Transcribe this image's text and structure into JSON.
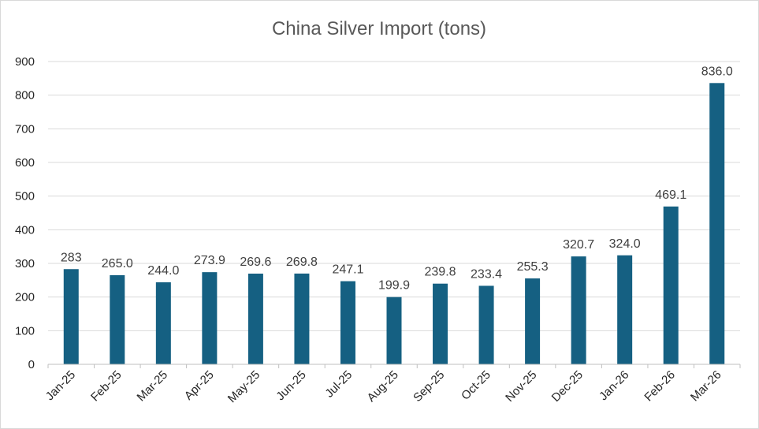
{
  "chart_data": {
    "type": "bar",
    "title": "China Silver Import (tons)",
    "xlabel": "",
    "ylabel": "",
    "categories": [
      "Jan-25",
      "Feb-25",
      "Mar-25",
      "Apr-25",
      "May-25",
      "Jun-25",
      "Jul-25",
      "Aug-25",
      "Sep-25",
      "Oct-25",
      "Nov-25",
      "Dec-25",
      "Jan-26",
      "Feb-26",
      "Mar-26"
    ],
    "values": [
      283,
      265.0,
      244.0,
      273.9,
      269.6,
      269.8,
      247.1,
      199.9,
      239.8,
      233.4,
      255.3,
      320.7,
      324.0,
      469.1,
      836.0
    ],
    "data_labels": [
      "283",
      "265.0",
      "244.0",
      "273.9",
      "269.6",
      "269.8",
      "247.1",
      "199.9",
      "239.8",
      "233.4",
      "255.3",
      "320.7",
      "324.0",
      "469.1",
      "836.0"
    ],
    "ylim": [
      0,
      900
    ],
    "yticks": [
      "0",
      "100",
      "200",
      "300",
      "400",
      "500",
      "600",
      "700",
      "800",
      "900"
    ],
    "grid": true,
    "bar_color": "#156082"
  }
}
